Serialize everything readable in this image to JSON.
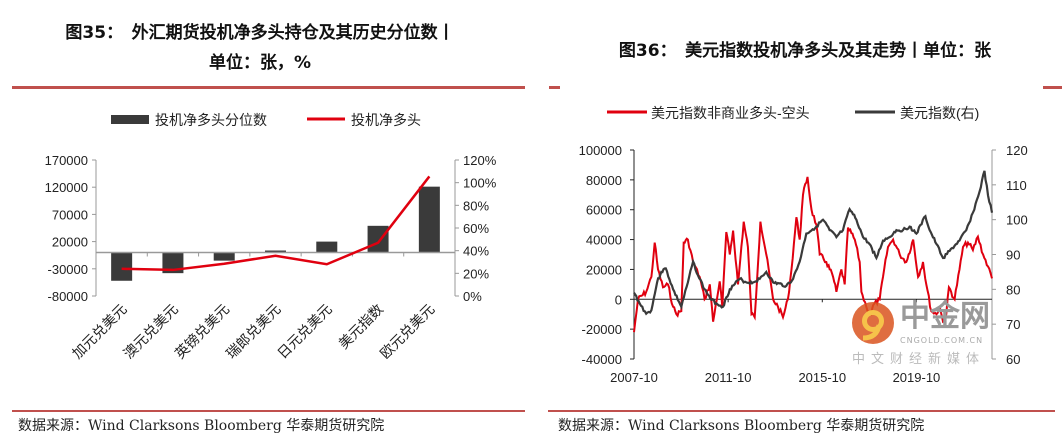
{
  "left": {
    "title_line1": "图35：　外汇期货投机净多头持仓及其历史分位数丨",
    "title_line2": "单位：张，%",
    "source": "数据来源：Wind Clarksons Bloomberg 华泰期货研究院"
  },
  "right": {
    "title": "图36：　美元指数投机净多头及其走势丨单位：张",
    "source": "数据来源：Wind Clarksons Bloomberg 华泰期货研究院"
  },
  "watermark": {
    "name": "中金网",
    "domain": "CNGOLD.COM.CN",
    "slogan": "中文财经新媒体"
  },
  "colors": {
    "bar": "#3a3a3a",
    "red": "#e0000f",
    "black": "#3a3a3a",
    "rule": "#c0504d"
  },
  "chart_data": [
    {
      "type": "bar",
      "categories": [
        "加元兑美元",
        "澳元兑美元",
        "英镑兑美元",
        "瑞郎兑美元",
        "日元兑美元",
        "美元指数",
        "欧元兑美元"
      ],
      "series": [
        {
          "name": "投机净多头分位数",
          "type": "bar",
          "axis": "left",
          "values": [
            -52000,
            -38000,
            -15000,
            3600,
            20000,
            49000,
            121000
          ]
        },
        {
          "name": "投机净多头",
          "type": "line",
          "axis": "right",
          "values": [
            24,
            23,
            28.5,
            35.5,
            28,
            47,
            105.5
          ]
        }
      ],
      "ylim": [
        -80000,
        170000
      ],
      "yticks": [
        "170000",
        "120000",
        "70000",
        "20000",
        "-30000",
        "-80000"
      ],
      "ytick_values": [
        170000,
        120000,
        70000,
        20000,
        -30000,
        -80000
      ],
      "y2lim": [
        0,
        120
      ],
      "y2ticks": [
        "120%",
        "100%",
        "80%",
        "60%",
        "40%",
        "20%",
        "0%"
      ],
      "y2tick_values": [
        120,
        100,
        80,
        60,
        40,
        20,
        0
      ],
      "legend": "top"
    },
    {
      "type": "line",
      "series": [
        {
          "name": "美元指数非商业多头-空头",
          "axis": "left",
          "x": [
            2007.75,
            2007.92,
            2008.27,
            2008.49,
            2008.63,
            2008.77,
            2008.98,
            2009.19,
            2009.41,
            2009.55,
            2009.76,
            2009.86,
            2010.04,
            2010.26,
            2010.54,
            2010.75,
            2010.97,
            2011.11,
            2011.39,
            2011.5,
            2011.67,
            2011.82,
            2011.96,
            2012.17,
            2012.41,
            2012.59,
            2012.74,
            2012.88,
            2013.12,
            2013.37,
            2013.66,
            2013.87,
            2014.08,
            2014.29,
            2014.44,
            2014.65,
            2014.79,
            2014.93,
            2015.12,
            2015.29,
            2015.5,
            2015.64,
            2015.92,
            2016.21,
            2016.35,
            2016.56,
            2016.7,
            2016.84,
            2017.13,
            2017.34,
            2017.41,
            2017.62,
            2017.83,
            2017.91,
            2018.19,
            2018.33,
            2018.54,
            2018.76,
            2019.04,
            2019.32,
            2019.61,
            2019.82,
            2020.03,
            2020.17,
            2020.38,
            2020.6,
            2020.74,
            2020.88,
            2021.02,
            2021.13,
            2021.37,
            2021.58,
            2021.73,
            2021.94,
            2022.15,
            2022.36,
            2022.58,
            2022.79,
            2022.96
          ],
          "y": [
            -22000,
            0,
            5000,
            15000,
            38000,
            20000,
            8000,
            10000,
            -5000,
            -10000,
            -8000,
            38000,
            40000,
            25000,
            15000,
            0,
            10000,
            -15000,
            12000,
            -5000,
            45000,
            30000,
            46000,
            10000,
            52000,
            35000,
            -10000,
            -12000,
            52000,
            30000,
            0,
            -5000,
            -12000,
            0,
            20000,
            55000,
            40000,
            70000,
            82000,
            60000,
            50000,
            30000,
            25000,
            15000,
            5000,
            20000,
            10000,
            48000,
            40000,
            25000,
            5000,
            -5000,
            -10000,
            -4000,
            0,
            15000,
            35000,
            40000,
            30000,
            25000,
            40000,
            15000,
            25000,
            10000,
            -8000,
            -10000,
            -5000,
            -15000,
            -10000,
            8000,
            0,
            20000,
            35000,
            38000,
            33000,
            42000,
            30000,
            22000,
            14000
          ]
        },
        {
          "name": "美元指数(右)",
          "axis": "right",
          "x": [
            2007.75,
            2007.99,
            2008.27,
            2008.49,
            2008.73,
            2008.91,
            2009.1,
            2009.41,
            2009.76,
            2010.04,
            2010.26,
            2010.47,
            2010.75,
            2011.04,
            2011.25,
            2011.53,
            2011.82,
            2012.24,
            2012.52,
            2012.81,
            2013.09,
            2013.37,
            2013.66,
            2014.22,
            2014.51,
            2014.79,
            2015.07,
            2015.5,
            2015.78,
            2016.06,
            2016.35,
            2016.63,
            2016.91,
            2017.2,
            2017.48,
            2017.76,
            2018.05,
            2018.33,
            2018.61,
            2018.9,
            2019.18,
            2019.46,
            2019.75,
            2020.13,
            2020.31,
            2020.6,
            2020.88,
            2021.16,
            2021.58,
            2021.87,
            2022.15,
            2022.43,
            2022.64,
            2022.79,
            2022.96
          ],
          "y": [
            79,
            76,
            73,
            74,
            82,
            85,
            86,
            80,
            75,
            82,
            88,
            84,
            80,
            77,
            76,
            75,
            80,
            83,
            82,
            82,
            83,
            85,
            82,
            81,
            83,
            88,
            96,
            98,
            100,
            97,
            95,
            97,
            103,
            100,
            95,
            93,
            89,
            94,
            95,
            97,
            97,
            98,
            96,
            101,
            97,
            93,
            89,
            91,
            94,
            97,
            102,
            108,
            114,
            107,
            102
          ]
        }
      ],
      "xticks": [
        "2007-10",
        "2011-10",
        "2015-10",
        "2019-10"
      ],
      "xtick_values": [
        2007.75,
        2011.75,
        2015.75,
        2019.75
      ],
      "xlim": [
        2007.75,
        2022.96
      ],
      "ylim": [
        -40000,
        100000
      ],
      "yticks": [
        "100000",
        "80000",
        "60000",
        "40000",
        "20000",
        "0",
        "-20000",
        "-40000"
      ],
      "ytick_values": [
        100000,
        80000,
        60000,
        40000,
        20000,
        0,
        -20000,
        -40000
      ],
      "y2lim": [
        60,
        120
      ],
      "y2ticks": [
        "120",
        "110",
        "100",
        "90",
        "80",
        "70",
        "60"
      ],
      "y2tick_values": [
        120,
        110,
        100,
        90,
        80,
        70,
        60
      ],
      "legend": "top"
    }
  ]
}
